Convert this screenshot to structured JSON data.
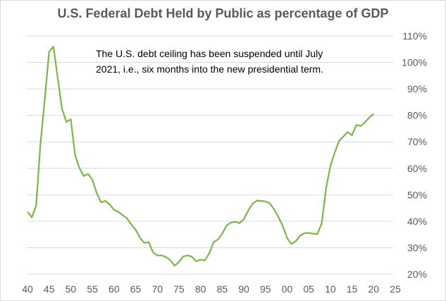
{
  "chart_data": {
    "type": "line",
    "title": "U.S. Federal Debt Held by Public as percentage of GDP",
    "annotation": "The U.S. debt ceiling has been suspended until July 2021, i.e., six months into the new presidential term.",
    "xlim": [
      40,
      25
    ],
    "x_ticks": [
      "40",
      "45",
      "50",
      "55",
      "60",
      "65",
      "70",
      "75",
      "80",
      "85",
      "90",
      "95",
      "00",
      "05",
      "10",
      "15",
      "20",
      "25"
    ],
    "ylim": [
      20,
      110
    ],
    "y_ticks": [
      "20%",
      "30%",
      "40%",
      "50%",
      "60%",
      "70%",
      "80%",
      "90%",
      "100%",
      "110%"
    ],
    "grid": true,
    "y_axis_position": "right",
    "line_color": "#7ab648",
    "series": [
      {
        "x": [
          1940,
          1941,
          1942,
          1943,
          1944,
          1945,
          1946,
          1947,
          1948,
          1949,
          1950,
          1951,
          1952,
          1953,
          1954,
          1955,
          1956,
          1957,
          1958,
          1959,
          1960,
          1961,
          1962,
          1963,
          1964,
          1965,
          1966,
          1967,
          1968,
          1969,
          1970,
          1971,
          1972,
          1973,
          1974,
          1975,
          1976,
          1977,
          1978,
          1979,
          1980,
          1981,
          1982,
          1983,
          1984,
          1985,
          1986,
          1987,
          1988,
          1989,
          1990,
          1991,
          1992,
          1993,
          1994,
          1995,
          1996,
          1997,
          1998,
          1999,
          2000,
          2001,
          2002,
          2003,
          2004,
          2005,
          2006,
          2007,
          2008,
          2009,
          2010,
          2011,
          2012,
          2013,
          2014,
          2015,
          2016,
          2017,
          2018,
          2019,
          2020
        ],
        "values": [
          43.6,
          41.5,
          45.9,
          69.2,
          86.2,
          104.0,
          106.0,
          93.9,
          82.4,
          77.5,
          78.5,
          65.0,
          60.1,
          57.1,
          57.9,
          55.7,
          50.6,
          47.2,
          47.7,
          46.4,
          44.3,
          43.6,
          42.3,
          41.1,
          38.8,
          36.8,
          33.7,
          31.8,
          32.2,
          28.3,
          27.1,
          27.1,
          26.5,
          25.3,
          23.2,
          24.6,
          26.7,
          27.1,
          26.6,
          24.9,
          25.5,
          25.2,
          27.9,
          32.1,
          33.1,
          35.3,
          38.4,
          39.5,
          39.8,
          39.3,
          40.8,
          44.0,
          46.6,
          47.8,
          47.7,
          47.5,
          46.8,
          44.5,
          41.6,
          38.2,
          33.6,
          31.4,
          32.5,
          34.5,
          35.5,
          35.6,
          35.3,
          35.2,
          39.3,
          52.3,
          60.9,
          65.9,
          70.4,
          72.0,
          73.7,
          72.5,
          76.4,
          76.0,
          77.4,
          79.2,
          80.6
        ]
      }
    ]
  }
}
